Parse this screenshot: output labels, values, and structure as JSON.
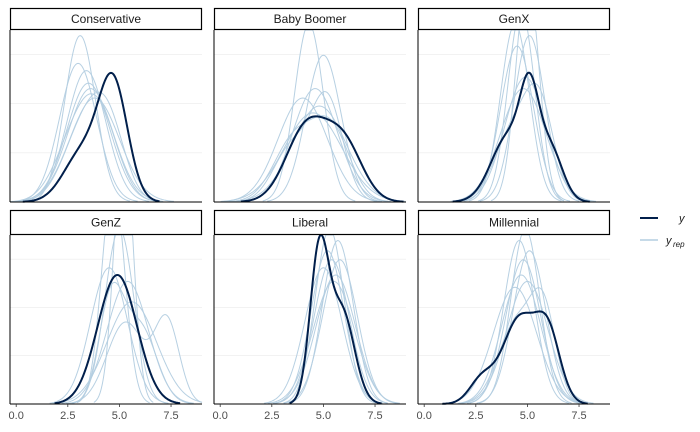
{
  "chart_data": {
    "type": "line",
    "description_style": "posterior predictive density overlay",
    "x_range": [
      -0.3,
      9.0
    ],
    "x_ticks": [
      0.0,
      2.5,
      5.0,
      7.5
    ],
    "x_tick_labels": [
      "0.0",
      "2.5",
      "5.0",
      "7.5"
    ],
    "colors": {
      "y": "#011f4b",
      "yrep": "#b3cde0",
      "strip_border": "#000000"
    },
    "legend": {
      "position": "right",
      "entries": [
        {
          "key": "y",
          "label": "y",
          "sub": ""
        },
        {
          "key": "yrep",
          "label": "y",
          "sub": "rep"
        }
      ]
    },
    "panels": [
      {
        "title": "Conservative",
        "y_max": 0.55,
        "y": {
          "components": [
            [
              3.2,
              0.9,
              0.35
            ],
            [
              4.7,
              0.7,
              0.65
            ]
          ]
        },
        "yrep": [
          {
            "components": [
              [
                3.5,
                1.05,
                1.0
              ]
            ]
          },
          {
            "components": [
              [
                3.0,
                0.9,
                1.0
              ]
            ]
          },
          {
            "components": [
              [
                3.3,
                1.0,
                0.6
              ],
              [
                4.5,
                0.8,
                0.4
              ]
            ]
          },
          {
            "components": [
              [
                3.6,
                1.1,
                1.0
              ]
            ]
          },
          {
            "components": [
              [
                3.1,
                0.75,
                1.0
              ]
            ]
          },
          {
            "components": [
              [
                3.8,
                1.2,
                1.0
              ]
            ]
          },
          {
            "components": [
              [
                3.4,
                0.95,
                1.0
              ]
            ]
          },
          {
            "components": [
              [
                2.9,
                1.0,
                0.5
              ],
              [
                4.1,
                0.9,
                0.5
              ]
            ]
          }
        ]
      },
      {
        "title": "Baby Boomer",
        "y_max": 0.55,
        "y": {
          "components": [
            [
              4.2,
              1.0,
              0.6
            ],
            [
              6.0,
              0.9,
              0.4
            ]
          ]
        },
        "yrep": [
          {
            "components": [
              [
                4.3,
                0.7,
                1.0
              ]
            ]
          },
          {
            "components": [
              [
                4.8,
                1.3,
                1.0
              ]
            ]
          },
          {
            "components": [
              [
                3.6,
                1.0,
                0.5
              ],
              [
                5.4,
                0.9,
                0.5
              ]
            ]
          },
          {
            "components": [
              [
                4.6,
                1.1,
                1.0
              ]
            ]
          },
          {
            "components": [
              [
                5.0,
                0.85,
                1.0
              ]
            ]
          },
          {
            "components": [
              [
                4.0,
                1.2,
                1.0
              ]
            ]
          },
          {
            "components": [
              [
                5.2,
                0.75,
                0.6
              ],
              [
                3.5,
                0.9,
                0.4
              ]
            ]
          },
          {
            "components": [
              [
                4.5,
                1.4,
                1.0
              ]
            ]
          }
        ]
      },
      {
        "title": "GenX",
        "y_max": 0.55,
        "y": {
          "components": [
            [
              4.1,
              0.85,
              0.45
            ],
            [
              5.1,
              0.45,
              0.3
            ],
            [
              6.1,
              0.6,
              0.25
            ]
          ]
        },
        "yrep": [
          {
            "components": [
              [
                4.7,
                0.65,
                1.0
              ]
            ]
          },
          {
            "components": [
              [
                4.9,
                1.0,
                1.0
              ]
            ]
          },
          {
            "components": [
              [
                4.5,
                0.8,
                1.0
              ]
            ]
          },
          {
            "components": [
              [
                5.0,
                0.55,
                1.0
              ]
            ]
          },
          {
            "components": [
              [
                4.3,
                0.9,
                0.5
              ],
              [
                5.6,
                0.7,
                0.5
              ]
            ]
          },
          {
            "components": [
              [
                4.8,
                1.1,
                1.0
              ]
            ]
          },
          {
            "components": [
              [
                5.1,
                0.75,
                1.0
              ]
            ]
          },
          {
            "components": [
              [
                4.4,
                0.7,
                1.0
              ]
            ]
          }
        ]
      },
      {
        "title": "GenZ",
        "y_max": 0.55,
        "y": {
          "components": [
            [
              4.9,
              0.95,
              1.0
            ]
          ]
        },
        "yrep": [
          {
            "components": [
              [
                5.2,
                0.45,
                1.0
              ]
            ]
          },
          {
            "components": [
              [
                4.7,
                0.55,
                1.0
              ]
            ]
          },
          {
            "components": [
              [
                5.3,
                0.9,
                0.6
              ],
              [
                7.3,
                0.6,
                0.4
              ]
            ]
          },
          {
            "components": [
              [
                5.0,
                0.7,
                1.0
              ]
            ]
          },
          {
            "components": [
              [
                5.6,
                1.2,
                1.0
              ]
            ]
          },
          {
            "components": [
              [
                4.5,
                0.9,
                1.0
              ]
            ]
          },
          {
            "components": [
              [
                6.0,
                0.8,
                0.5
              ],
              [
                4.6,
                0.6,
                0.5
              ]
            ]
          },
          {
            "components": [
              [
                5.4,
                1.0,
                1.0
              ]
            ]
          }
        ]
      },
      {
        "title": "Liberal",
        "y_max": 0.55,
        "y": {
          "components": [
            [
              4.8,
              0.45,
              0.55
            ],
            [
              5.9,
              0.6,
              0.45
            ]
          ]
        },
        "yrep": [
          {
            "components": [
              [
                5.4,
                0.85,
                1.0
              ]
            ]
          },
          {
            "components": [
              [
                5.6,
                0.95,
                1.0
              ]
            ]
          },
          {
            "components": [
              [
                5.2,
                0.8,
                1.0
              ]
            ]
          },
          {
            "components": [
              [
                5.7,
                0.75,
                1.0
              ]
            ]
          },
          {
            "components": [
              [
                5.0,
                0.9,
                1.0
              ]
            ]
          },
          {
            "components": [
              [
                5.5,
                1.0,
                1.0
              ]
            ]
          },
          {
            "components": [
              [
                5.3,
                0.7,
                1.0
              ]
            ]
          },
          {
            "components": [
              [
                5.8,
                0.85,
                1.0
              ]
            ]
          }
        ]
      },
      {
        "title": "Millennial",
        "y_max": 0.55,
        "y": {
          "components": [
            [
              2.8,
              0.6,
              0.12
            ],
            [
              4.6,
              0.8,
              0.55
            ],
            [
              6.0,
              0.6,
              0.33
            ]
          ]
        },
        "yrep": [
          {
            "components": [
              [
                4.8,
                0.85,
                1.0
              ]
            ]
          },
          {
            "components": [
              [
                4.6,
                0.75,
                1.0
              ]
            ]
          },
          {
            "components": [
              [
                5.0,
                1.0,
                1.0
              ]
            ]
          },
          {
            "components": [
              [
                4.5,
                0.9,
                0.6
              ],
              [
                5.8,
                0.6,
                0.4
              ]
            ]
          },
          {
            "components": [
              [
                4.9,
                0.7,
                1.0
              ]
            ]
          },
          {
            "components": [
              [
                4.4,
                1.05,
                1.0
              ]
            ]
          },
          {
            "components": [
              [
                5.1,
                0.8,
                1.0
              ]
            ]
          },
          {
            "components": [
              [
                4.7,
                0.95,
                1.0
              ]
            ]
          }
        ]
      }
    ]
  }
}
